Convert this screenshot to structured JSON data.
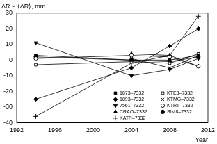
{
  "chart_data": {
    "type": "line",
    "y_label": "ΔR − ⟨ΔR⟩, mm",
    "x_label": "Year",
    "x": [
      1994,
      2004,
      2008,
      2011
    ],
    "xlim": [
      1992,
      2012
    ],
    "xticks": [
      1992,
      1996,
      2000,
      2004,
      2008,
      2012
    ],
    "ylim": [
      -40,
      30
    ],
    "yticks": [
      -40,
      -30,
      -20,
      -10,
      0,
      10,
      20,
      30
    ],
    "grid": false,
    "legend": "lower right",
    "color": "#000000",
    "series": [
      {
        "name": "1873–7332",
        "marker": "square",
        "values": [
          3,
          0,
          0,
          3
        ]
      },
      {
        "name": "KTE3–7332",
        "marker": "square_open",
        "values": [
          -3,
          -1,
          -2,
          4
        ]
      },
      {
        "name": "1893–7332",
        "marker": "diamond",
        "values": [
          -25,
          -5,
          9,
          20
        ]
      },
      {
        "name": "KTMG–7332",
        "marker": "x",
        "values": [
          null,
          1,
          -5,
          3
        ]
      },
      {
        "name": "7561–7332",
        "marker": "triangle_down",
        "values": [
          11,
          -10,
          -6,
          1
        ]
      },
      {
        "name": "KTRT–7332",
        "marker": "circle_open",
        "values": [
          1,
          3,
          2,
          -4
        ]
      },
      {
        "name": "CRAO–7332",
        "marker": "triangle",
        "values": [
          null,
          4,
          3,
          -4
        ]
      },
      {
        "name": "SIM8–7332",
        "marker": "circle",
        "values": [
          2,
          0,
          -1,
          2
        ]
      },
      {
        "name": "KATP–7332",
        "marker": "plus",
        "values": [
          -36,
          -2,
          3,
          28
        ]
      }
    ]
  }
}
